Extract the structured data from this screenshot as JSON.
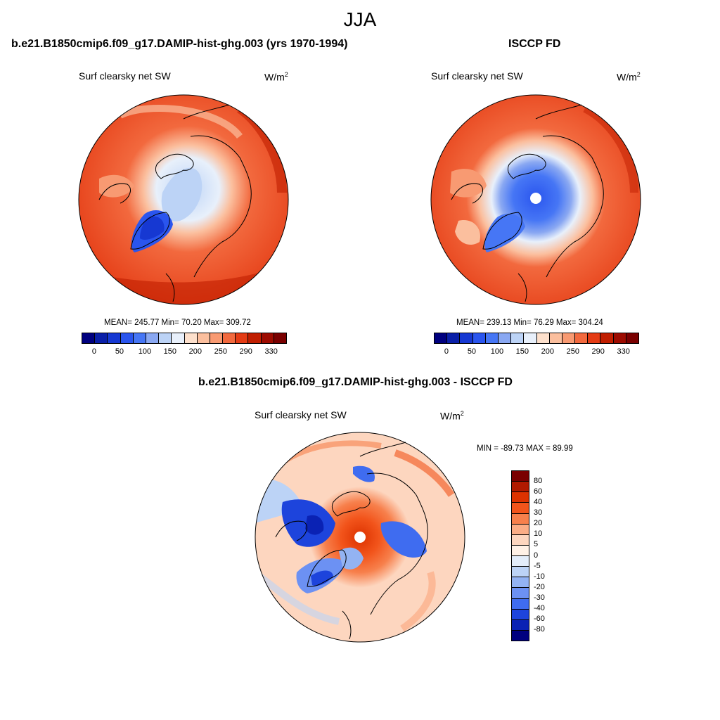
{
  "figure": {
    "title": "JJA"
  },
  "panels": [
    {
      "title": "b.e21.B1850cmip6.f09_g17.DAMIP-hist-ghg.003 (yrs 1970-1994)",
      "variable": "Surf clearsky net SW",
      "units": "W/m",
      "units_exp": "2",
      "stats": "MEAN= 245.77  Min=  70.20  Max= 309.72",
      "colorbar_ticks": [
        "0",
        "50",
        "100",
        "150",
        "200",
        "250",
        "290",
        "330"
      ]
    },
    {
      "title": "ISCCP FD",
      "variable": "Surf clearsky net SW",
      "units": "W/m",
      "units_exp": "2",
      "stats": "MEAN= 239.13  Min=  76.29  Max= 304.24",
      "colorbar_ticks": [
        "0",
        "50",
        "100",
        "150",
        "200",
        "250",
        "290",
        "330"
      ]
    },
    {
      "title": "b.e21.B1850cmip6.f09_g17.DAMIP-hist-ghg.003 - ISCCP FD",
      "variable": "Surf clearsky net SW",
      "units": "W/m",
      "units_exp": "2",
      "stats": "MIN = -89.73 MAX =  89.99",
      "colorbar_ticks": [
        "80",
        "60",
        "40",
        "30",
        "20",
        "10",
        "5",
        "0",
        "-5",
        "-10",
        "-20",
        "-30",
        "-40",
        "-60",
        "-80"
      ]
    }
  ],
  "colors": {
    "abs_scale": [
      "#00007f",
      "#0a1fa8",
      "#1638d2",
      "#2a55ee",
      "#4676f5",
      "#8aa8f2",
      "#bcd3f6",
      "#e8f0fb",
      "#fde0cc",
      "#fbbf9e",
      "#f89a72",
      "#f2693e",
      "#e43b14",
      "#c01e00",
      "#9d0b00",
      "#7a0000"
    ],
    "diff_scale": [
      "#7a0000",
      "#b01a00",
      "#dc3200",
      "#f2541b",
      "#f7804c",
      "#fbad86",
      "#fdd6bf",
      "#fff1e6",
      "#e3edfa",
      "#bcd3f6",
      "#93b3f3",
      "#6c91f3",
      "#3f6cf0",
      "#1d44dc",
      "#0a22b4",
      "#00007f"
    ]
  }
}
